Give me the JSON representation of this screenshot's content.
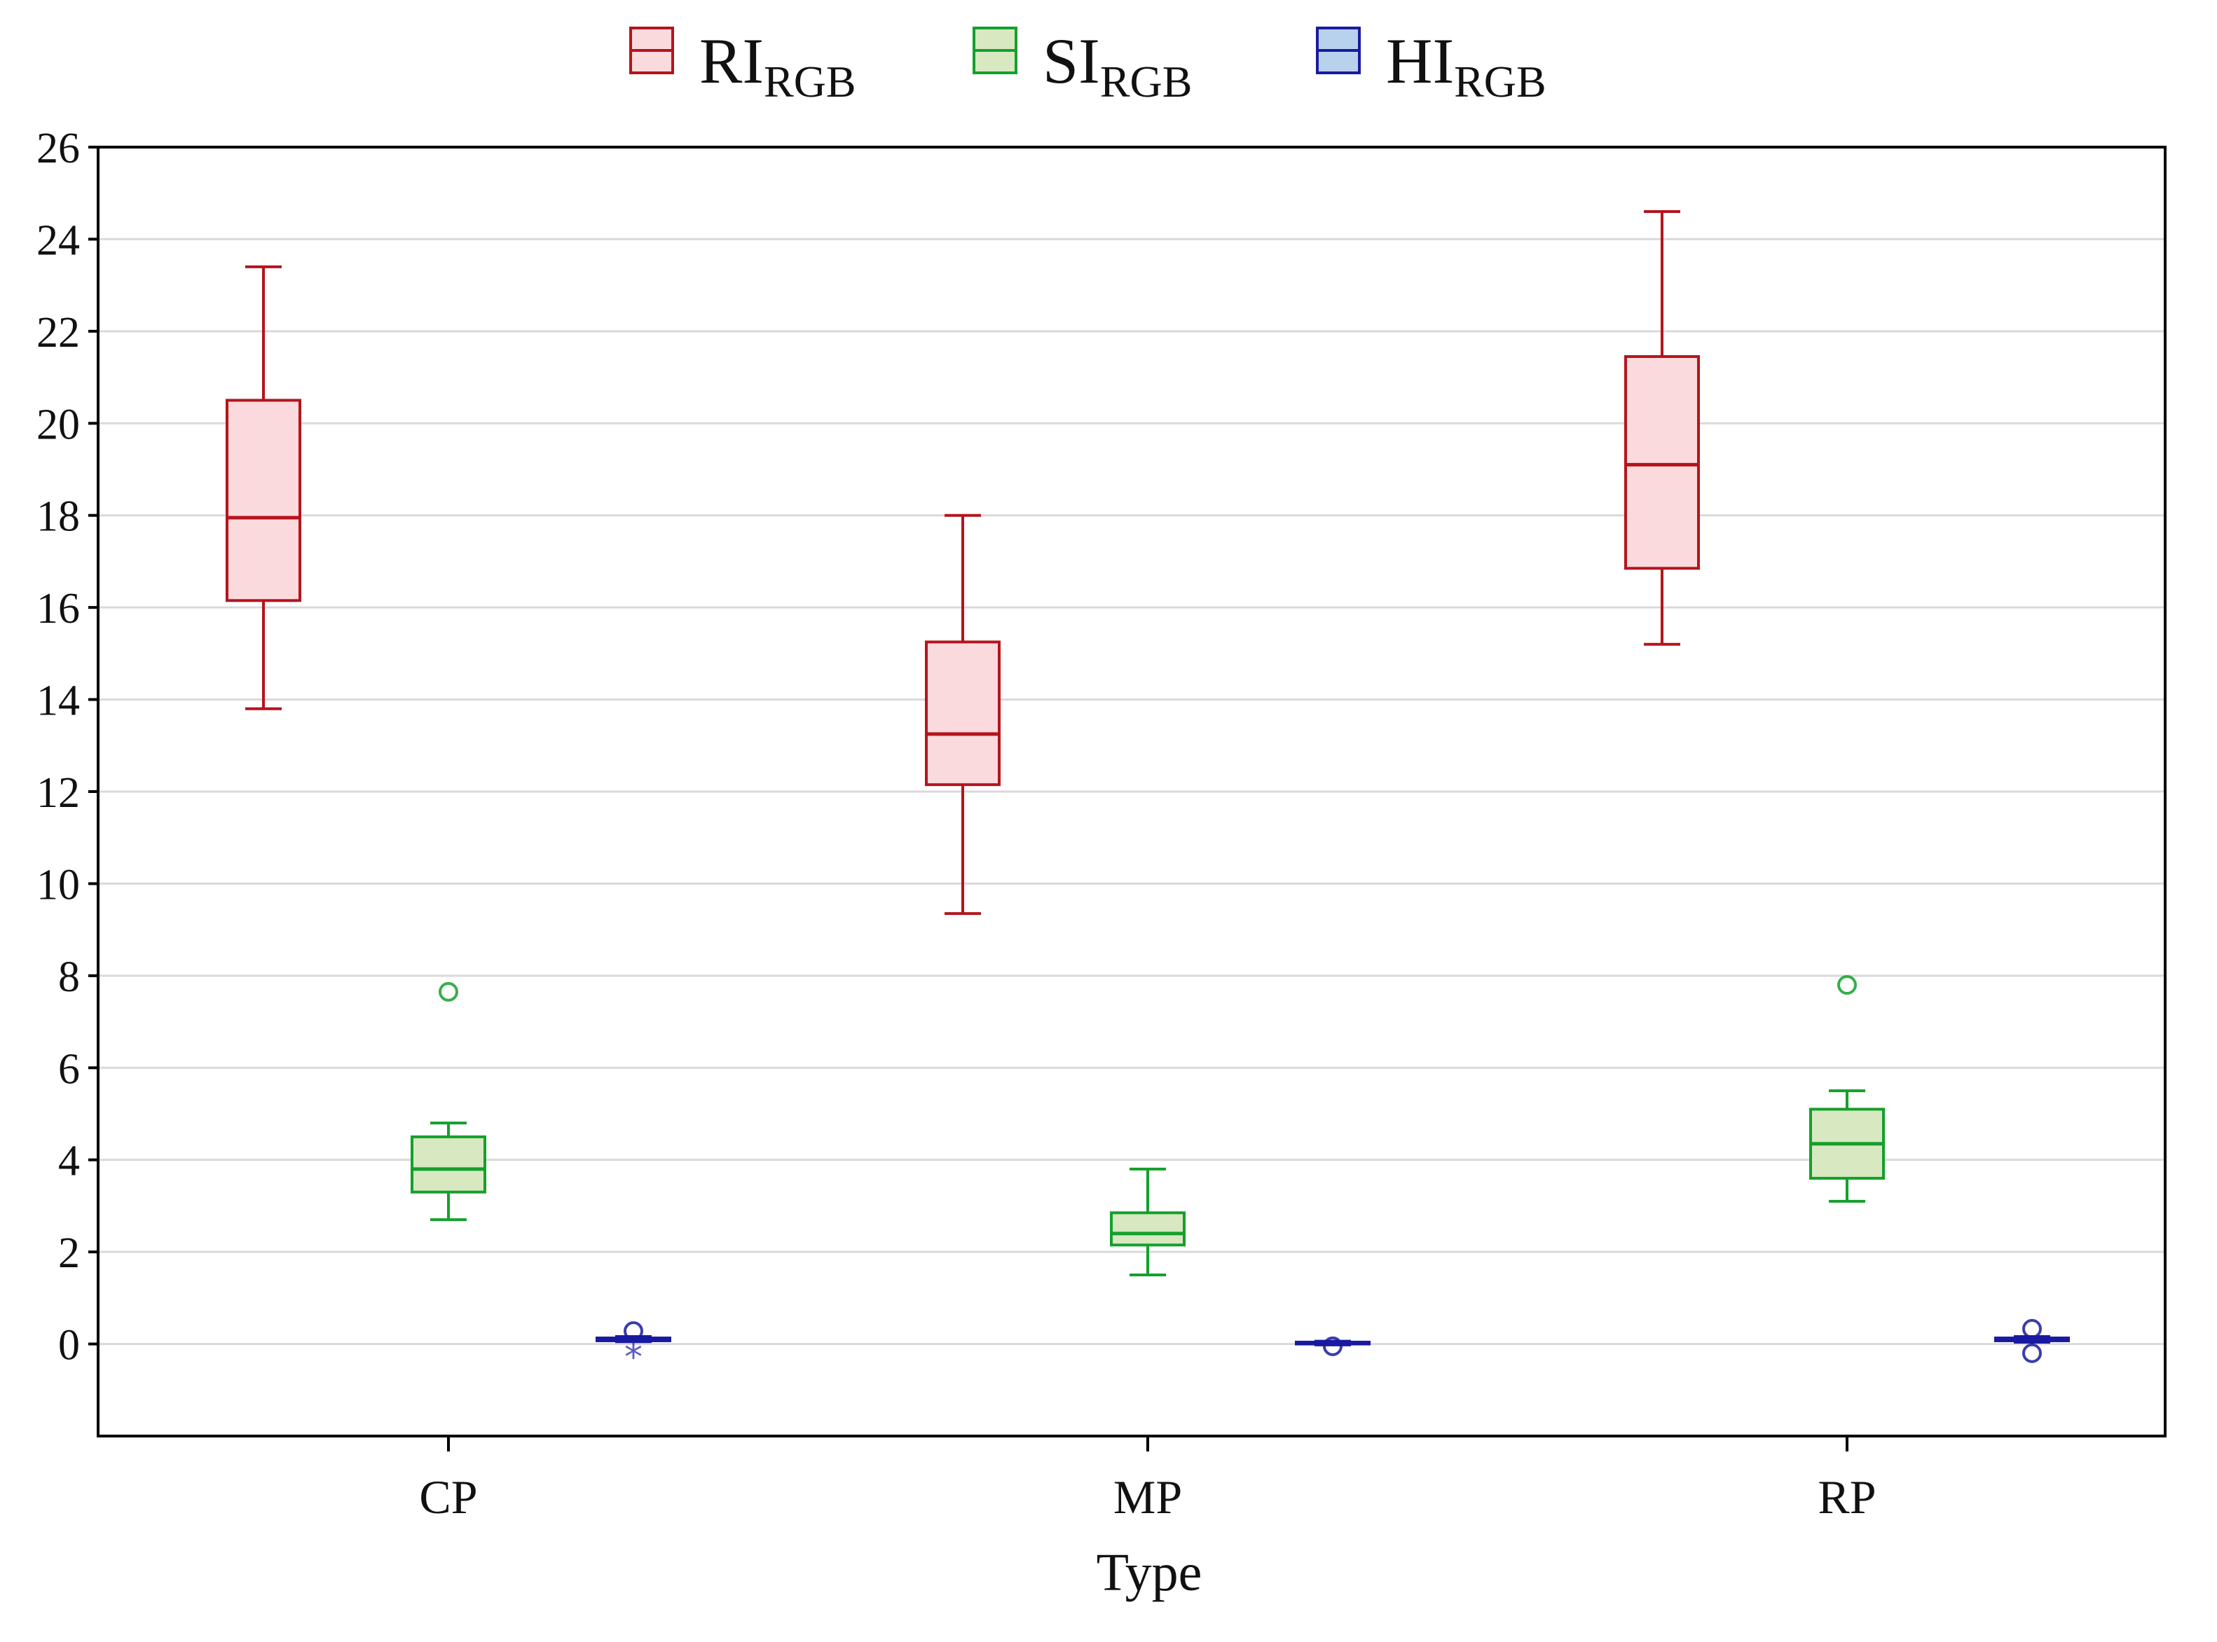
{
  "chart_data": {
    "type": "boxplot",
    "xlabel": "Type",
    "ylabel": "",
    "categories": [
      "CP",
      "MP",
      "RP"
    ],
    "ylim": [
      -2,
      26
    ],
    "yticks": [
      0,
      2,
      4,
      6,
      8,
      10,
      12,
      14,
      16,
      18,
      20,
      22,
      24,
      26
    ],
    "grid": true,
    "legend_position": "top-center",
    "series": [
      {
        "name": "RI",
        "name_sub": "RGB",
        "stroke": "#b5141d",
        "fill": "#fadadd",
        "boxes": [
          {
            "category": "CP",
            "whisker_low": 13.8,
            "q1": 16.15,
            "median": 17.95,
            "q3": 20.5,
            "whisker_high": 23.4,
            "outliers": [],
            "extremes": []
          },
          {
            "category": "MP",
            "whisker_low": 9.35,
            "q1": 12.15,
            "median": 13.25,
            "q3": 15.25,
            "whisker_high": 18.0,
            "outliers": [],
            "extremes": []
          },
          {
            "category": "RP",
            "whisker_low": 15.2,
            "q1": 16.85,
            "median": 19.1,
            "q3": 21.45,
            "whisker_high": 24.6,
            "outliers": [],
            "extremes": []
          }
        ]
      },
      {
        "name": "SI",
        "name_sub": "RGB",
        "stroke": "#14a02c",
        "fill": "#d8e8c0",
        "boxes": [
          {
            "category": "CP",
            "whisker_low": 2.7,
            "q1": 3.3,
            "median": 3.8,
            "q3": 4.5,
            "whisker_high": 4.8,
            "outliers": [
              7.65
            ],
            "extremes": []
          },
          {
            "category": "MP",
            "whisker_low": 1.5,
            "q1": 2.15,
            "median": 2.4,
            "q3": 2.85,
            "whisker_high": 3.8,
            "outliers": [],
            "extremes": []
          },
          {
            "category": "RP",
            "whisker_low": 3.1,
            "q1": 3.6,
            "median": 4.35,
            "q3": 5.1,
            "whisker_high": 5.5,
            "outliers": [
              7.8
            ],
            "extremes": []
          }
        ]
      },
      {
        "name": "HI",
        "name_sub": "RGB",
        "stroke": "#1a1aa0",
        "fill": "#b8d2ee",
        "boxes": [
          {
            "category": "CP",
            "whisker_low": 0.05,
            "q1": 0.07,
            "median": 0.1,
            "q3": 0.13,
            "whisker_high": 0.16,
            "outliers": [
              0.28
            ],
            "extremes": [
              -0.22
            ]
          },
          {
            "category": "MP",
            "whisker_low": -0.02,
            "q1": 0.0,
            "median": 0.02,
            "q3": 0.04,
            "whisker_high": 0.06,
            "outliers": [
              -0.05
            ],
            "extremes": []
          },
          {
            "category": "RP",
            "whisker_low": 0.04,
            "q1": 0.07,
            "median": 0.1,
            "q3": 0.13,
            "whisker_high": 0.16,
            "outliers": [
              0.33,
              -0.2
            ],
            "extremes": []
          }
        ]
      }
    ]
  }
}
